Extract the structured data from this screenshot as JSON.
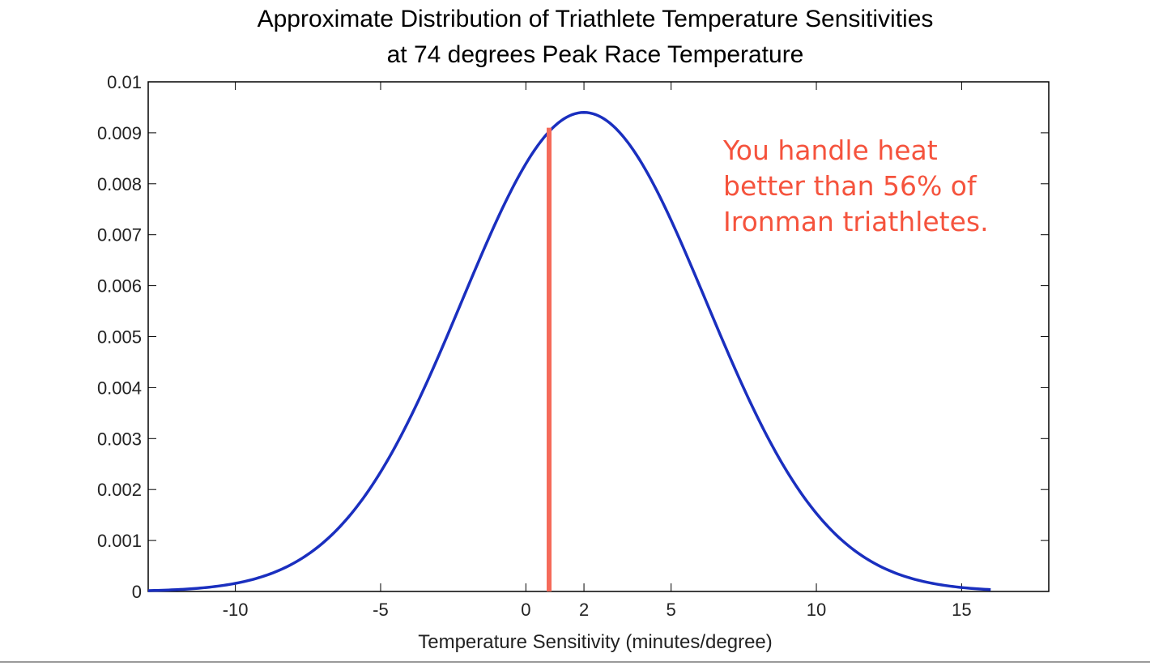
{
  "chart_data": {
    "type": "line",
    "title": [
      "Approximate Distribution of Triathlete Temperature Sensitivities",
      "at 74 degrees Peak Race Temperature"
    ],
    "xlabel": "Temperature Sensitivity (minutes/degree)",
    "ylabel": "",
    "xlim": [
      -13,
      18
    ],
    "ylim": [
      0,
      0.01
    ],
    "x_ticks": [
      -10,
      -5,
      0,
      2,
      5,
      10,
      15
    ],
    "y_ticks": [
      0,
      0.001,
      0.002,
      0.003,
      0.004,
      0.005,
      0.006,
      0.007,
      0.008,
      0.009,
      0.01
    ],
    "x_tick_labels": [
      "-10",
      "-5",
      "0",
      "2",
      "5",
      "10",
      "15"
    ],
    "y_tick_labels": [
      "0",
      "0.001",
      "0.002",
      "0.003",
      "0.004",
      "0.005",
      "0.006",
      "0.007",
      "0.008",
      "0.009",
      "0.01"
    ],
    "grid": false,
    "series": [
      {
        "color": "#1a2fbf",
        "distribution": "normal",
        "mean": 2,
        "std": 4.2,
        "peak": 0.0094,
        "x_range": [
          -13,
          16
        ]
      }
    ],
    "marker_line": {
      "x": 0.8,
      "y_top": 0.0091,
      "color": "#f56a5a"
    },
    "annotation": {
      "lines": [
        "You handle heat",
        "better than 56% of",
        "Ironman triathletes."
      ],
      "color": "#f5533d"
    }
  }
}
